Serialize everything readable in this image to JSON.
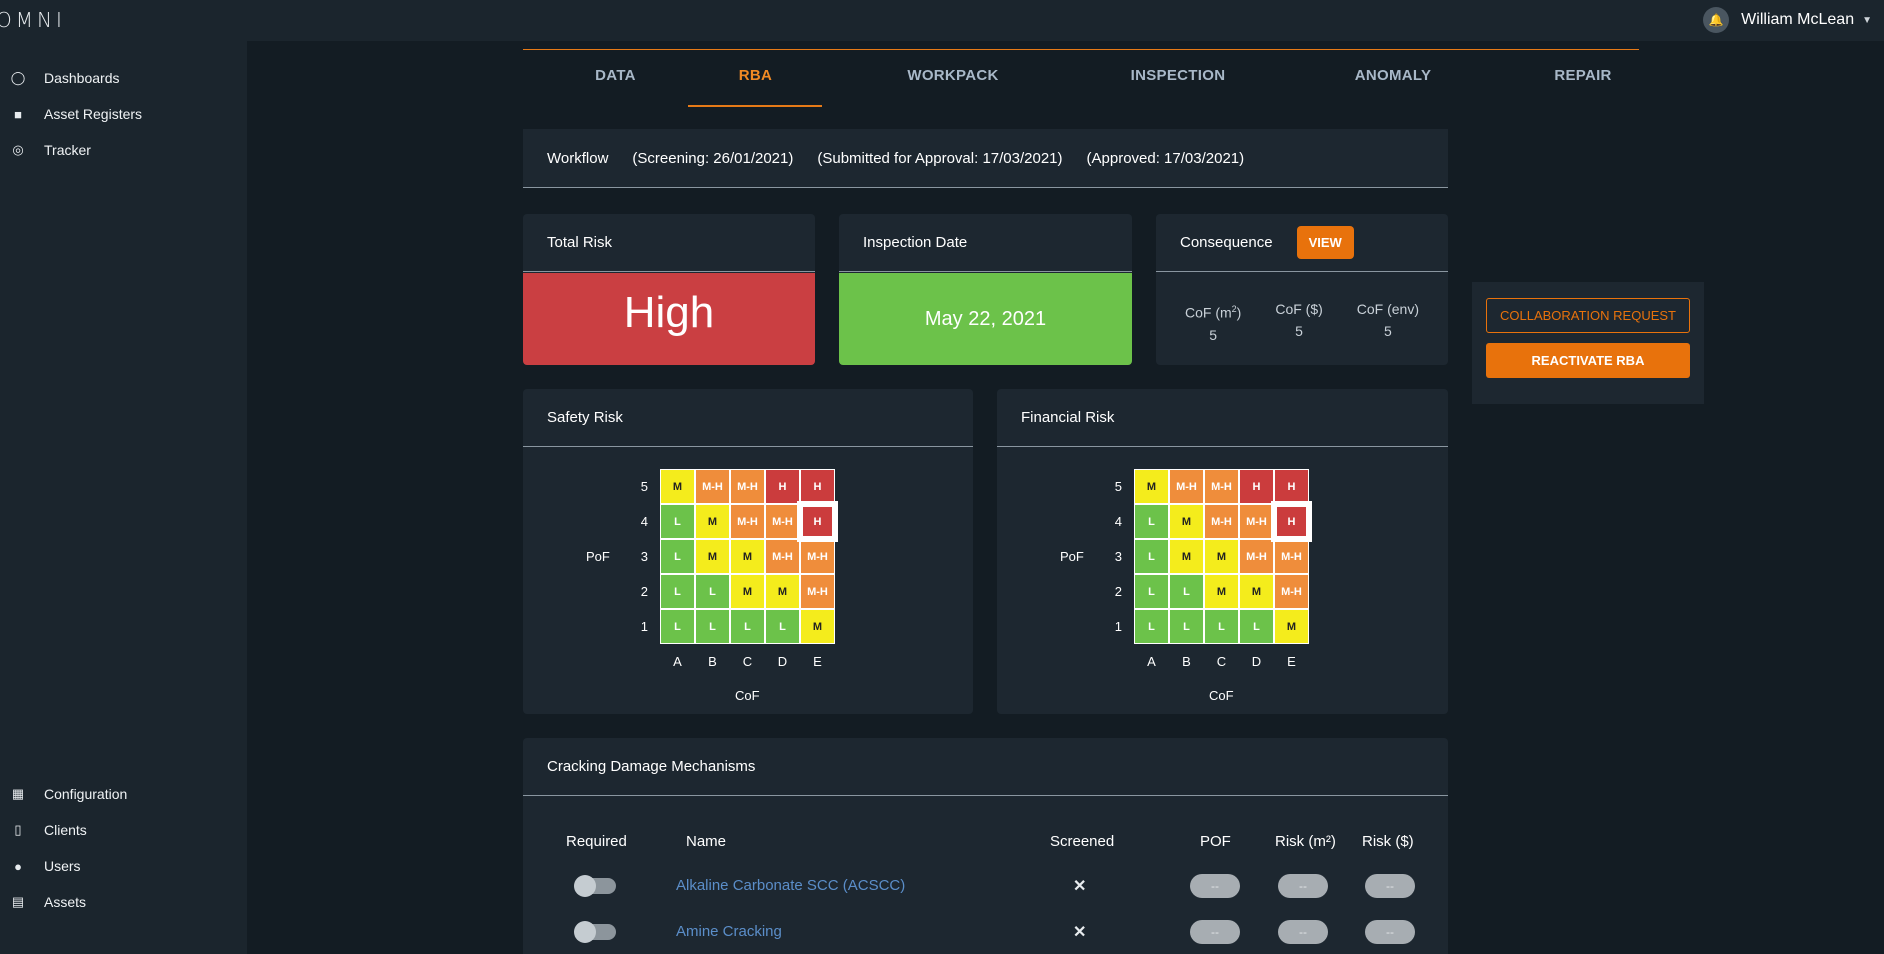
{
  "app": {
    "logo": "OMNI"
  },
  "user": {
    "name": "William McLean",
    "avatar_icon": "bell-icon"
  },
  "sidebar": {
    "top_items": [
      {
        "label": "Dashboards",
        "icon": "circle-icon"
      },
      {
        "label": "Asset Registers",
        "icon": "register-icon"
      },
      {
        "label": "Tracker",
        "icon": "target-icon"
      }
    ],
    "bottom_items": [
      {
        "label": "Configuration",
        "icon": "table-icon"
      },
      {
        "label": "Clients",
        "icon": "building-icon"
      },
      {
        "label": "Users",
        "icon": "user-icon"
      },
      {
        "label": "Assets",
        "icon": "chart-icon"
      }
    ]
  },
  "tabs": [
    "DATA",
    "RBA",
    "WORKPACK",
    "INSPECTION",
    "ANOMALY",
    "REPAIR"
  ],
  "active_tab": "RBA",
  "workflow": {
    "label": "Workflow",
    "screening": "(Screening: 26/01/2021)",
    "submitted": "(Submitted for Approval: 17/03/2021)",
    "approved": "(Approved: 17/03/2021)"
  },
  "total_risk": {
    "title": "Total Risk",
    "value": "High",
    "color": "#ca3f42"
  },
  "inspection_date": {
    "title": "Inspection Date",
    "value": "May 22, 2021",
    "color": "#6cc24a"
  },
  "consequence": {
    "title": "Consequence",
    "view_label": "VIEW",
    "columns": [
      {
        "label_main": "CoF (m",
        "label_sup": "2",
        "label_end": ")",
        "value": "5"
      },
      {
        "label": "CoF ($)",
        "value": "5"
      },
      {
        "label": "CoF (env)",
        "value": "5"
      }
    ]
  },
  "actions": {
    "collaboration": "COLLABORATION REQUEST",
    "reactivate": "REACTIVATE RBA"
  },
  "matrix": {
    "rows_labels": [
      "5",
      "4",
      "3",
      "2",
      "1"
    ],
    "col_labels": [
      "A",
      "B",
      "C",
      "D",
      "E"
    ],
    "x_axis": "CoF",
    "y_axis": "PoF",
    "cells": [
      [
        "M",
        "M-H",
        "M-H",
        "H",
        "H"
      ],
      [
        "L",
        "M",
        "M-H",
        "M-H",
        "H"
      ],
      [
        "L",
        "M",
        "M",
        "M-H",
        "M-H"
      ],
      [
        "L",
        "L",
        "M",
        "M",
        "M-H"
      ],
      [
        "L",
        "L",
        "L",
        "L",
        "M"
      ]
    ],
    "selected": {
      "row_label": "4",
      "col_label": "E"
    },
    "colors": {
      "L": "#6cc24a",
      "M": "#f4ec1c",
      "M-H": "#ef8d3b",
      "H": "#cb3c3d"
    }
  },
  "safety_risk": {
    "title": "Safety Risk"
  },
  "financial_risk": {
    "title": "Financial Risk"
  },
  "cracking": {
    "title": "Cracking Damage Mechanisms",
    "headers": [
      "Required",
      "Name",
      "Screened",
      "POF",
      "Risk (m²)",
      "Risk ($)"
    ],
    "rows": [
      {
        "name": "Alkaline Carbonate SCC (ACSCC)",
        "screened": "✕",
        "pof": "--",
        "risk_m2": "--",
        "risk_usd": "--"
      },
      {
        "name": "Amine Cracking",
        "screened": "✕",
        "pof": "--",
        "risk_m2": "--",
        "risk_usd": "--"
      }
    ]
  }
}
